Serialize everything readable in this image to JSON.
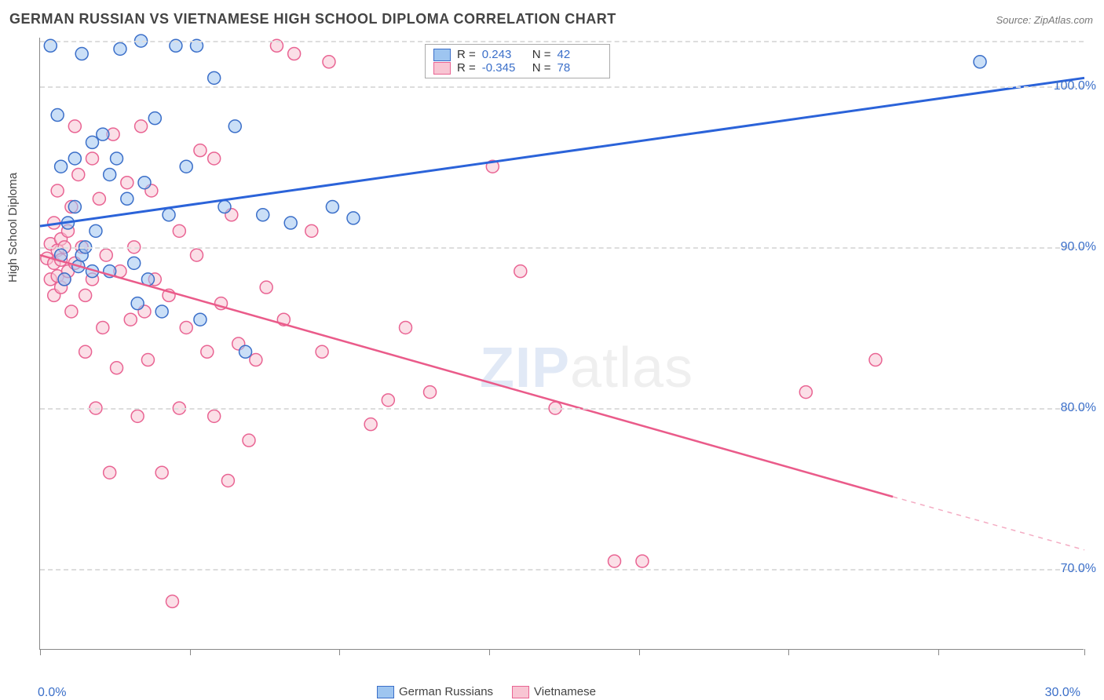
{
  "title": "GERMAN RUSSIAN VS VIETNAMESE HIGH SCHOOL DIPLOMA CORRELATION CHART",
  "source": "Source: ZipAtlas.com",
  "watermark": {
    "bold": "ZIP",
    "light": "atlas"
  },
  "ylabel": "High School Diploma",
  "chart": {
    "type": "scatter-with-regression",
    "background": "#ffffff",
    "grid_color": "#dddddd",
    "axis_color": "#888888",
    "xlim": [
      0,
      30
    ],
    "ylim": [
      65,
      103
    ],
    "x_tick_positions": [
      0,
      4.3,
      8.6,
      12.9,
      17.2,
      21.5,
      25.8,
      30
    ],
    "x_end_labels": [
      "0.0%",
      "30.0%"
    ],
    "y_ticks": [
      70,
      80,
      90,
      100
    ],
    "y_tick_labels": [
      "70.0%",
      "80.0%",
      "90.0%",
      "100.0%"
    ],
    "marker_radius": 8,
    "series": [
      {
        "name": "German Russians",
        "color_fill": "#9ec5f0",
        "color_stroke": "#3b6fc9",
        "reg_color": "#2b63d9",
        "R": "0.243",
        "N": "42",
        "regression": {
          "x1": 0,
          "y1": 91.3,
          "x2": 30,
          "y2": 100.5
        },
        "points": [
          [
            0.3,
            102.5
          ],
          [
            0.5,
            98.2
          ],
          [
            0.6,
            95.0
          ],
          [
            0.6,
            89.5
          ],
          [
            0.7,
            88.0
          ],
          [
            0.8,
            91.5
          ],
          [
            1.0,
            92.5
          ],
          [
            1.0,
            95.5
          ],
          [
            1.1,
            88.8
          ],
          [
            1.2,
            89.5
          ],
          [
            1.2,
            102.0
          ],
          [
            1.3,
            90.0
          ],
          [
            1.5,
            96.5
          ],
          [
            1.5,
            88.5
          ],
          [
            1.6,
            91.0
          ],
          [
            1.8,
            97.0
          ],
          [
            2.0,
            94.5
          ],
          [
            2.0,
            88.5
          ],
          [
            2.2,
            95.5
          ],
          [
            2.3,
            102.3
          ],
          [
            2.5,
            93.0
          ],
          [
            2.7,
            89.0
          ],
          [
            2.8,
            86.5
          ],
          [
            2.9,
            102.8
          ],
          [
            3.0,
            94.0
          ],
          [
            3.1,
            88.0
          ],
          [
            3.3,
            98.0
          ],
          [
            3.5,
            86.0
          ],
          [
            3.7,
            92.0
          ],
          [
            3.9,
            102.5
          ],
          [
            4.2,
            95.0
          ],
          [
            4.5,
            102.5
          ],
          [
            4.6,
            85.5
          ],
          [
            5.0,
            100.5
          ],
          [
            5.3,
            92.5
          ],
          [
            5.6,
            97.5
          ],
          [
            5.9,
            83.5
          ],
          [
            6.4,
            92.0
          ],
          [
            7.2,
            91.5
          ],
          [
            8.4,
            92.5
          ],
          [
            9.0,
            91.8
          ],
          [
            27.0,
            101.5
          ]
        ]
      },
      {
        "name": "Vietnamese",
        "color_fill": "#f8c5d3",
        "color_stroke": "#e96493",
        "reg_color": "#ea5b8a",
        "R": "-0.345",
        "N": "78",
        "regression": {
          "x1": 0,
          "y1": 89.5,
          "x2": 24.5,
          "y2": 74.5
        },
        "regression_dashed": {
          "x1": 24.5,
          "y1": 74.5,
          "x2": 30,
          "y2": 71.2
        },
        "points": [
          [
            0.2,
            89.3
          ],
          [
            0.3,
            90.2
          ],
          [
            0.3,
            88.0
          ],
          [
            0.4,
            89.0
          ],
          [
            0.4,
            91.5
          ],
          [
            0.4,
            87.0
          ],
          [
            0.5,
            89.8
          ],
          [
            0.5,
            93.5
          ],
          [
            0.5,
            88.2
          ],
          [
            0.6,
            90.5
          ],
          [
            0.6,
            87.5
          ],
          [
            0.6,
            89.2
          ],
          [
            0.7,
            90.0
          ],
          [
            0.7,
            88.0
          ],
          [
            0.8,
            91.0
          ],
          [
            0.8,
            88.5
          ],
          [
            0.9,
            92.5
          ],
          [
            0.9,
            86.0
          ],
          [
            1.0,
            97.5
          ],
          [
            1.0,
            89.0
          ],
          [
            1.1,
            94.5
          ],
          [
            1.2,
            90.0
          ],
          [
            1.3,
            87.0
          ],
          [
            1.3,
            83.5
          ],
          [
            1.5,
            95.5
          ],
          [
            1.5,
            88.0
          ],
          [
            1.6,
            80.0
          ],
          [
            1.7,
            93.0
          ],
          [
            1.8,
            85.0
          ],
          [
            1.9,
            89.5
          ],
          [
            2.0,
            76.0
          ],
          [
            2.1,
            97.0
          ],
          [
            2.2,
            82.5
          ],
          [
            2.3,
            88.5
          ],
          [
            2.5,
            94.0
          ],
          [
            2.6,
            85.5
          ],
          [
            2.7,
            90.0
          ],
          [
            2.8,
            79.5
          ],
          [
            2.9,
            97.5
          ],
          [
            3.0,
            86.0
          ],
          [
            3.1,
            83.0
          ],
          [
            3.2,
            93.5
          ],
          [
            3.3,
            88.0
          ],
          [
            3.5,
            76.0
          ],
          [
            3.7,
            87.0
          ],
          [
            3.8,
            68.0
          ],
          [
            4.0,
            91.0
          ],
          [
            4.0,
            80.0
          ],
          [
            4.2,
            85.0
          ],
          [
            4.5,
            89.5
          ],
          [
            4.6,
            96.0
          ],
          [
            4.8,
            83.5
          ],
          [
            5.0,
            95.5
          ],
          [
            5.0,
            79.5
          ],
          [
            5.2,
            86.5
          ],
          [
            5.4,
            75.5
          ],
          [
            5.5,
            92.0
          ],
          [
            5.7,
            84.0
          ],
          [
            6.0,
            78.0
          ],
          [
            6.2,
            83.0
          ],
          [
            6.5,
            87.5
          ],
          [
            6.8,
            102.5
          ],
          [
            7.0,
            85.5
          ],
          [
            7.3,
            102.0
          ],
          [
            7.8,
            91.0
          ],
          [
            8.1,
            83.5
          ],
          [
            8.3,
            101.5
          ],
          [
            9.5,
            79.0
          ],
          [
            10.0,
            80.5
          ],
          [
            10.5,
            85.0
          ],
          [
            11.2,
            81.0
          ],
          [
            13.0,
            95.0
          ],
          [
            14.8,
            80.0
          ],
          [
            13.8,
            88.5
          ],
          [
            16.5,
            70.5
          ],
          [
            17.3,
            70.5
          ],
          [
            22.0,
            81.0
          ],
          [
            24.0,
            83.0
          ]
        ]
      }
    ]
  },
  "stats_legend": {
    "label_R": "R =",
    "label_N": "N ="
  },
  "bottom_legend": {
    "items": [
      "German Russians",
      "Vietnamese"
    ]
  }
}
